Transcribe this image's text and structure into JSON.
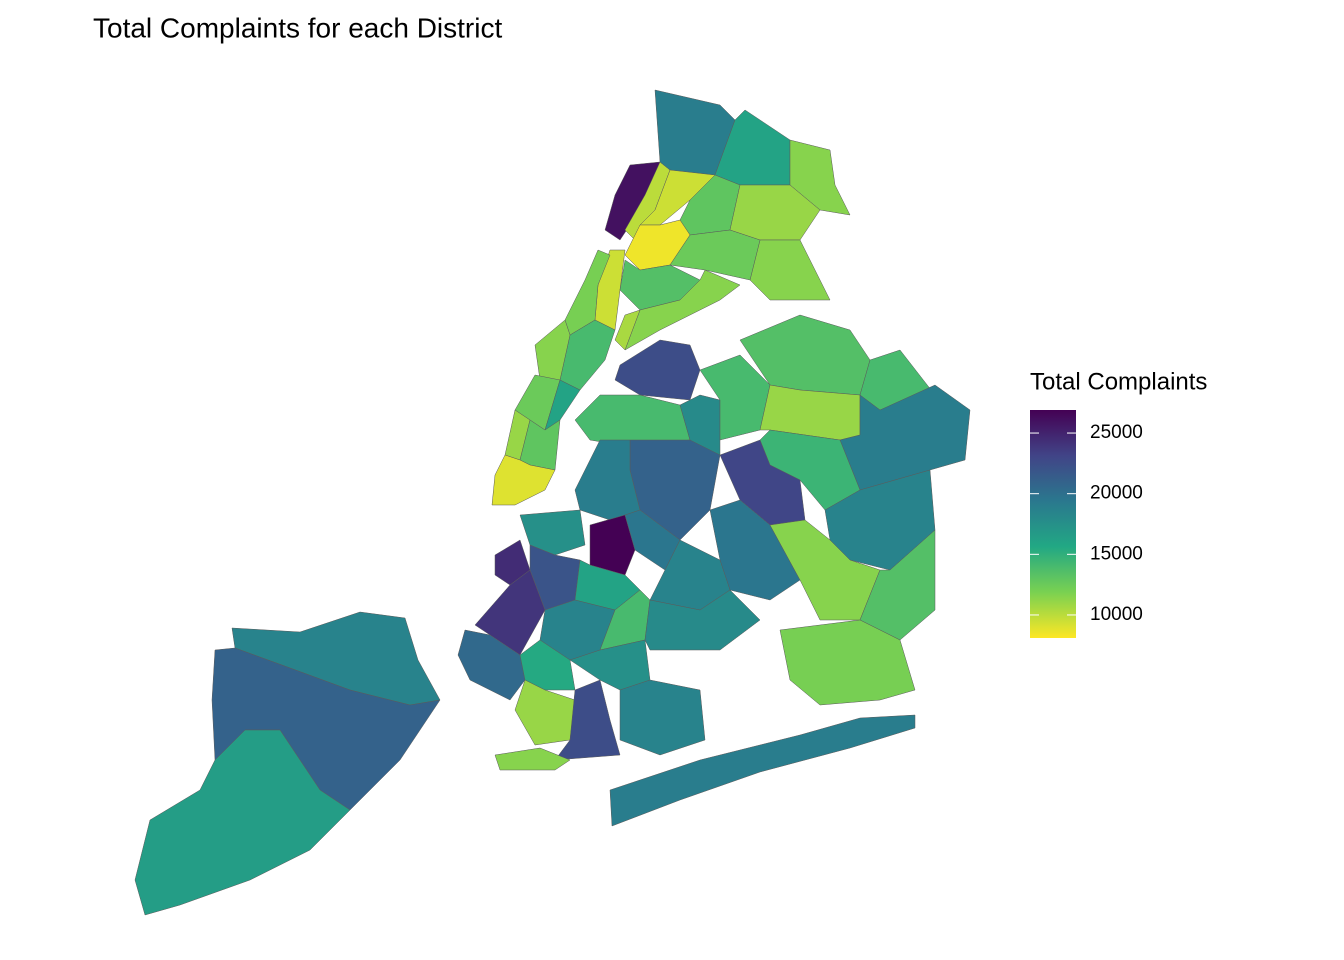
{
  "chart_data": {
    "type": "choropleth",
    "title": "Total Complaints for each District",
    "legend_title": "Total Complaints",
    "values": [
      18500,
      21000,
      16500,
      26000,
      10000,
      9500,
      12000,
      14000,
      11500,
      12500,
      16000,
      11000,
      13000,
      9000,
      19000,
      16000,
      11500,
      9500,
      13000,
      8500,
      11000,
      11500,
      12500,
      13500,
      11500,
      10500,
      22500,
      14000,
      18000,
      14000,
      13500,
      14000,
      11000,
      19000,
      14500,
      21000,
      23000,
      18500,
      19500,
      11500,
      13500,
      19000,
      12000,
      19000,
      17500,
      27000,
      19500,
      24500,
      22000,
      16000,
      18500,
      24000,
      18500,
      14000,
      18000,
      20500,
      15500,
      17500,
      11000,
      22500,
      11500,
      18500
    ],
    "colorscale": [
      "#fde725",
      "#7ad151",
      "#22a884",
      "#2a788e",
      "#414487",
      "#440154"
    ],
    "clim": [
      8100,
      26900
    ],
    "cticks": [
      10000,
      15000,
      20000,
      25000
    ]
  }
}
